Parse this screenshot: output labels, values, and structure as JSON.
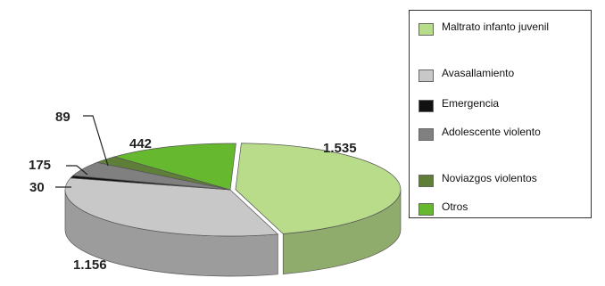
{
  "chart_data": {
    "type": "pie",
    "title": "",
    "style": "3d-exploded",
    "legend_position": "right",
    "slices": [
      {
        "label": "Maltrato infanto juvenil",
        "value": 1535,
        "display": "1.535",
        "color": "#b8dc8a"
      },
      {
        "label": "Avasallamiento",
        "value": 1156,
        "display": "1.156",
        "color": "#c8c8c8"
      },
      {
        "label": "Emergencia",
        "value": 30,
        "display": "30",
        "color": "#111111"
      },
      {
        "label": "Adolescente violento",
        "value": 175,
        "display": "175",
        "color": "#808080"
      },
      {
        "label": "Noviazgos violentos",
        "value": 89,
        "display": "89",
        "color": "#5f7f38"
      },
      {
        "label": "Otros",
        "value": 442,
        "display": "442",
        "color": "#66b92e"
      }
    ]
  }
}
